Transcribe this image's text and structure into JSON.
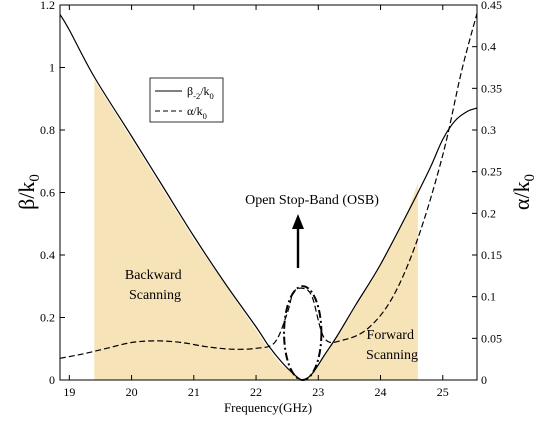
{
  "chart_data": {
    "type": "line",
    "title": "",
    "xlabel": "Frequency(GHz)",
    "ylabel_left": "β/k0",
    "ylabel_right": "α/k0",
    "xlim": [
      18.85,
      25.55
    ],
    "ylim_left": [
      0,
      1.2
    ],
    "ylim_right": [
      0,
      0.45
    ],
    "x_ticks": [
      19,
      20,
      21,
      22,
      23,
      24,
      25
    ],
    "y_left_ticks": [
      0,
      0.2,
      0.4,
      0.6,
      0.8,
      1,
      1.2
    ],
    "y_right_ticks": [
      0,
      0.05,
      0.1,
      0.15,
      0.2,
      0.25,
      0.3,
      0.35,
      0.4,
      0.45
    ],
    "grid": false,
    "legend": {
      "placement": "upper-left",
      "entries": [
        {
          "label": "β-2/k0",
          "style": "solid"
        },
        {
          "label": "α/k0",
          "style": "dashed"
        }
      ]
    },
    "series": [
      {
        "name": "β-2/k0",
        "axis": "left",
        "style": "solid",
        "x": [
          18.85,
          19.0,
          19.4,
          20.0,
          20.5,
          21.0,
          21.5,
          22.0,
          22.2,
          22.4,
          22.6,
          22.75,
          22.9,
          23.1,
          23.3,
          23.6,
          24.0,
          24.5,
          24.8,
          25.0,
          25.2,
          25.4,
          25.55
        ],
        "y": [
          1.17,
          1.12,
          0.97,
          0.78,
          0.62,
          0.46,
          0.31,
          0.17,
          0.11,
          0.06,
          0.02,
          0.0,
          0.02,
          0.08,
          0.14,
          0.24,
          0.37,
          0.56,
          0.68,
          0.77,
          0.83,
          0.86,
          0.87
        ]
      },
      {
        "name": "α/k0",
        "axis": "right",
        "style": "dashed",
        "x": [
          18.85,
          19.2,
          19.6,
          20.0,
          20.4,
          20.8,
          21.2,
          21.6,
          22.0,
          22.3,
          22.5,
          22.6,
          22.75,
          22.9,
          23.1,
          23.4,
          23.8,
          24.2,
          24.6,
          25.0,
          25.3,
          25.55
        ],
        "y": [
          0.026,
          0.031,
          0.038,
          0.045,
          0.047,
          0.045,
          0.04,
          0.037,
          0.038,
          0.045,
          0.08,
          0.105,
          0.11,
          0.1,
          0.05,
          0.048,
          0.062,
          0.1,
          0.17,
          0.27,
          0.37,
          0.44
        ]
      }
    ],
    "shaded_regions": [
      {
        "name": "Backward Scanning",
        "fill": "#f7e3b8",
        "x": [
          19.4,
          20.0,
          21.0,
          22.0,
          22.2,
          22.4,
          22.6,
          22.75
        ],
        "y_left": [
          0.96,
          0.77,
          0.45,
          0.16,
          0.1,
          0.05,
          0.02,
          0.0
        ]
      },
      {
        "name": "Forward Scanning",
        "fill": "#f7e3b8",
        "x": [
          22.75,
          22.9,
          23.1,
          23.3,
          23.6,
          24.0,
          24.4,
          24.6
        ],
        "y_left": [
          0.0,
          0.02,
          0.08,
          0.14,
          0.24,
          0.37,
          0.52,
          0.63
        ]
      }
    ],
    "annotations": [
      {
        "text": "Open Stop-Band (OSB)",
        "type": "arrow-label"
      },
      {
        "lines": [
          "Backward",
          "Scanning"
        ]
      },
      {
        "lines": [
          "Forward",
          "Scanning"
        ]
      }
    ],
    "osb_ellipse": {
      "center_x": 22.75,
      "center_y_left": 0.15,
      "half_width_x": 0.3,
      "half_height_y": 0.15,
      "style": "dash-dot"
    }
  }
}
